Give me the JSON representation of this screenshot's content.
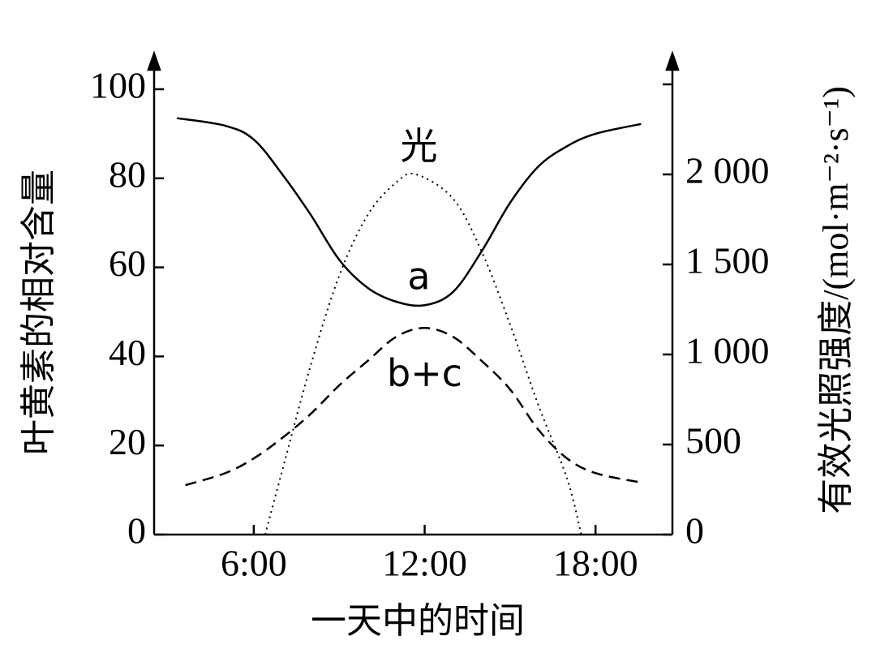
{
  "chart_data": {
    "type": "line",
    "xlabel": "一天中的时间",
    "ylabel": "叶黄素的相对含量",
    "y2label": "有效光照强度/(mol·m⁻²·s⁻¹)",
    "xlim": [
      2.5,
      20.7
    ],
    "xticks": [
      {
        "value": 6,
        "label": "6:00"
      },
      {
        "value": 12,
        "label": "12:00"
      },
      {
        "value": 18,
        "label": "18:00"
      }
    ],
    "ylim": [
      0,
      100
    ],
    "yticks": [
      0,
      20,
      40,
      60,
      80,
      100
    ],
    "y2lim": [
      0,
      2500
    ],
    "y2ticks": [
      0,
      500,
      {
        "value": 1000,
        "label": "1 000"
      },
      {
        "value": 1500,
        "label": "1 500"
      },
      {
        "value": 2000,
        "label": "2 000"
      }
    ],
    "series": [
      {
        "name": "a",
        "color": "#000000",
        "style": "solid",
        "x": [
          3.3,
          5,
          6,
          7,
          8,
          9,
          10,
          11,
          12,
          13,
          14,
          15,
          16,
          17,
          18,
          19.6
        ],
        "values": [
          93.5,
          91.8,
          88.7,
          80.9,
          71.8,
          61.7,
          55.4,
          52.3,
          51.5,
          54.5,
          63.6,
          74.5,
          82.7,
          87.2,
          90,
          92.2
        ]
      },
      {
        "name": "b+c",
        "color": "#000000",
        "style": "dashed",
        "x": [
          3.6,
          5,
          6,
          7,
          8,
          9,
          10,
          11,
          12,
          13,
          14,
          15,
          16,
          17,
          18,
          19.5
        ],
        "values": [
          11.1,
          13.8,
          17.1,
          21.7,
          27.1,
          33.5,
          39,
          44.4,
          46.4,
          44.4,
          39,
          32.6,
          23.5,
          17.1,
          13.8,
          11.8
        ]
      },
      {
        "name": "光",
        "color": "#000000",
        "style": "dotted",
        "axis": "y2",
        "x": [
          6.4,
          7,
          8,
          9,
          10,
          11,
          11.7,
          13,
          14,
          15,
          16,
          17,
          17.5
        ],
        "values": [
          0,
          356,
          941,
          1437,
          1775,
          1955,
          2000,
          1865,
          1572,
          1167,
          716,
          311,
          0
        ]
      }
    ],
    "labels": [
      {
        "series": 0,
        "x": 11.8,
        "y": 57.4
      },
      {
        "series": 1,
        "x": 12.0,
        "y": 35.6
      },
      {
        "series": 2,
        "x": 11.8,
        "y": 86.6
      }
    ]
  }
}
